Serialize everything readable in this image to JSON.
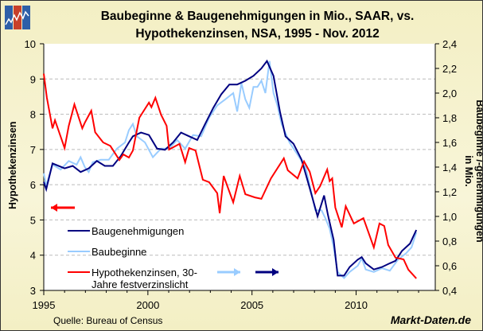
{
  "chart_data": {
    "type": "line",
    "title": "Baubeginne & Baugenehmigungen in Mio., SAAR, vs. Hypothekenzinsen, NSA, 1995 - Nov. 2012",
    "title_lines": [
      "Baubeginne & Baugenehmigungen in Mio., SAAR, vs.",
      "Hypothekenzinsen, NSA, 1995 - Nov. 2012"
    ],
    "ylabel_left": "Hypothekenzinsen",
    "ylabel_right": "Baubeginne /-genehmigungen in Mio.",
    "xlim": [
      1995,
      2013.8
    ],
    "ylim_left": [
      3,
      10
    ],
    "ylim_right": [
      0.4,
      2.4
    ],
    "x_ticks": [
      "1995",
      "2000",
      "2005",
      "2010"
    ],
    "y_ticks_left": [
      "3",
      "4",
      "5",
      "6",
      "7",
      "8",
      "9",
      "10"
    ],
    "y_ticks_right": [
      "0,4",
      "0,6",
      "0,8",
      "1,0",
      "1,2",
      "1,4",
      "1,6",
      "1,8",
      "2,0",
      "2,2",
      "2,4"
    ],
    "grid": "horizontal dashed",
    "legend_placement": "bottom-left",
    "series": [
      {
        "name": "Baugenehmigungen",
        "axis": "right",
        "color": "#000080",
        "points": [
          [
            1995.0,
            1.28
          ],
          [
            1995.12,
            1.22
          ],
          [
            1995.42,
            1.43
          ],
          [
            1996.0,
            1.39
          ],
          [
            1996.39,
            1.41
          ],
          [
            1996.77,
            1.36
          ],
          [
            1997.16,
            1.39
          ],
          [
            1997.55,
            1.45
          ],
          [
            1997.93,
            1.41
          ],
          [
            1998.32,
            1.41
          ],
          [
            1998.7,
            1.49
          ],
          [
            1999.09,
            1.6
          ],
          [
            1999.28,
            1.65
          ],
          [
            1999.67,
            1.68
          ],
          [
            2000.05,
            1.66
          ],
          [
            2000.44,
            1.55
          ],
          [
            2000.82,
            1.54
          ],
          [
            2001.21,
            1.6
          ],
          [
            2001.59,
            1.68
          ],
          [
            2001.98,
            1.65
          ],
          [
            2002.37,
            1.62
          ],
          [
            2002.75,
            1.75
          ],
          [
            2003.14,
            1.88
          ],
          [
            2003.52,
            1.99
          ],
          [
            2003.91,
            2.07
          ],
          [
            2004.29,
            2.07
          ],
          [
            2004.68,
            2.1
          ],
          [
            2005.07,
            2.14
          ],
          [
            2005.45,
            2.2
          ],
          [
            2005.72,
            2.26
          ],
          [
            2006.03,
            2.14
          ],
          [
            2006.34,
            1.85
          ],
          [
            2006.61,
            1.65
          ],
          [
            2006.99,
            1.59
          ],
          [
            2007.38,
            1.46
          ],
          [
            2007.77,
            1.23
          ],
          [
            2008.15,
            1.0
          ],
          [
            2008.46,
            1.17
          ],
          [
            2008.65,
            1.01
          ],
          [
            2008.92,
            0.81
          ],
          [
            2009.11,
            0.52
          ],
          [
            2009.42,
            0.52
          ],
          [
            2009.69,
            0.59
          ],
          [
            2010.08,
            0.65
          ],
          [
            2010.27,
            0.67
          ],
          [
            2010.46,
            0.62
          ],
          [
            2010.85,
            0.57
          ],
          [
            2011.24,
            0.59
          ],
          [
            2011.62,
            0.62
          ],
          [
            2011.89,
            0.64
          ],
          [
            2012.2,
            0.72
          ],
          [
            2012.59,
            0.78
          ],
          [
            2012.89,
            0.89
          ]
        ]
      },
      {
        "name": "Baubeginne",
        "axis": "right",
        "color": "#99ccff",
        "points": [
          [
            1995.0,
            1.35
          ],
          [
            1995.12,
            1.25
          ],
          [
            1995.42,
            1.42
          ],
          [
            1995.81,
            1.38
          ],
          [
            1996.2,
            1.45
          ],
          [
            1996.58,
            1.42
          ],
          [
            1996.77,
            1.48
          ],
          [
            1996.97,
            1.4
          ],
          [
            1997.16,
            1.36
          ],
          [
            1997.35,
            1.44
          ],
          [
            1997.74,
            1.46
          ],
          [
            1998.12,
            1.46
          ],
          [
            1998.51,
            1.55
          ],
          [
            1998.9,
            1.6
          ],
          [
            1999.09,
            1.7
          ],
          [
            1999.28,
            1.75
          ],
          [
            1999.47,
            1.65
          ],
          [
            1999.86,
            1.6
          ],
          [
            2000.24,
            1.48
          ],
          [
            2000.63,
            1.55
          ],
          [
            2001.02,
            1.55
          ],
          [
            2001.4,
            1.62
          ],
          [
            2001.79,
            1.55
          ],
          [
            2002.17,
            1.66
          ],
          [
            2002.56,
            1.65
          ],
          [
            2002.94,
            1.8
          ],
          [
            2003.33,
            1.9
          ],
          [
            2003.72,
            1.95
          ],
          [
            2004.1,
            2.0
          ],
          [
            2004.29,
            1.85
          ],
          [
            2004.49,
            2.08
          ],
          [
            2004.68,
            1.95
          ],
          [
            2004.87,
            1.88
          ],
          [
            2005.07,
            2.05
          ],
          [
            2005.26,
            2.05
          ],
          [
            2005.45,
            2.1
          ],
          [
            2005.64,
            2.0
          ],
          [
            2005.84,
            2.26
          ],
          [
            2006.03,
            2.0
          ],
          [
            2006.22,
            1.9
          ],
          [
            2006.42,
            1.75
          ],
          [
            2006.8,
            1.6
          ],
          [
            2007.19,
            1.5
          ],
          [
            2007.57,
            1.4
          ],
          [
            2007.84,
            1.2
          ],
          [
            2008.04,
            1.05
          ],
          [
            2008.34,
            1.05
          ],
          [
            2008.54,
            0.98
          ],
          [
            2008.73,
            0.9
          ],
          [
            2008.92,
            0.75
          ],
          [
            2009.11,
            0.55
          ],
          [
            2009.42,
            0.5
          ],
          [
            2009.69,
            0.55
          ],
          [
            2010.08,
            0.6
          ],
          [
            2010.27,
            0.66
          ],
          [
            2010.46,
            0.57
          ],
          [
            2010.85,
            0.55
          ],
          [
            2011.24,
            0.58
          ],
          [
            2011.62,
            0.56
          ],
          [
            2012.01,
            0.65
          ],
          [
            2012.39,
            0.7
          ],
          [
            2012.66,
            0.75
          ],
          [
            2012.89,
            0.87
          ]
        ]
      },
      {
        "name": "Hypothekenzinsen, 30-Jahre festverzinslicht",
        "axis": "left",
        "color": "#ff0000",
        "points": [
          [
            1995.0,
            9.15
          ],
          [
            1995.15,
            8.47
          ],
          [
            1995.42,
            7.6
          ],
          [
            1995.54,
            7.83
          ],
          [
            1996.0,
            7.04
          ],
          [
            1996.2,
            7.67
          ],
          [
            1996.47,
            8.28
          ],
          [
            1996.85,
            7.6
          ],
          [
            1996.97,
            7.76
          ],
          [
            1997.28,
            8.1
          ],
          [
            1997.47,
            7.49
          ],
          [
            1997.85,
            7.2
          ],
          [
            1998.2,
            7.1
          ],
          [
            1998.63,
            6.7
          ],
          [
            1998.82,
            6.86
          ],
          [
            1999.09,
            6.77
          ],
          [
            1999.28,
            6.97
          ],
          [
            1999.59,
            7.9
          ],
          [
            2000.05,
            8.33
          ],
          [
            2000.17,
            8.2
          ],
          [
            2000.36,
            8.47
          ],
          [
            2000.63,
            7.99
          ],
          [
            2000.9,
            7.67
          ],
          [
            2001.02,
            7.0
          ],
          [
            2001.52,
            7.16
          ],
          [
            2001.79,
            6.64
          ],
          [
            2001.98,
            7.04
          ],
          [
            2002.29,
            6.97
          ],
          [
            2002.64,
            6.14
          ],
          [
            2002.94,
            6.07
          ],
          [
            2003.33,
            5.76
          ],
          [
            2003.45,
            5.19
          ],
          [
            2003.64,
            6.25
          ],
          [
            2004.1,
            5.5
          ],
          [
            2004.41,
            6.25
          ],
          [
            2004.68,
            5.73
          ],
          [
            2005.14,
            5.64
          ],
          [
            2005.45,
            5.6
          ],
          [
            2005.91,
            6.18
          ],
          [
            2006.53,
            6.75
          ],
          [
            2006.72,
            6.41
          ],
          [
            2007.19,
            6.18
          ],
          [
            2007.5,
            6.66
          ],
          [
            2007.77,
            6.37
          ],
          [
            2008.04,
            5.76
          ],
          [
            2008.27,
            5.96
          ],
          [
            2008.61,
            6.43
          ],
          [
            2008.73,
            6.1
          ],
          [
            2008.85,
            6.18
          ],
          [
            2009.0,
            5.35
          ],
          [
            2009.31,
            4.79
          ],
          [
            2009.5,
            5.39
          ],
          [
            2009.89,
            4.9
          ],
          [
            2010.35,
            5.05
          ],
          [
            2010.85,
            4.22
          ],
          [
            2011.12,
            4.9
          ],
          [
            2011.35,
            4.83
          ],
          [
            2011.54,
            4.29
          ],
          [
            2011.89,
            3.93
          ],
          [
            2012.28,
            3.88
          ],
          [
            2012.51,
            3.59
          ],
          [
            2012.89,
            3.34
          ]
        ]
      }
    ],
    "legend": [
      "Baugenehmigungen",
      "Baubeginne",
      "Hypothekenzinsen, 30-",
      "Jahre festverzinslicht"
    ]
  },
  "footer": {
    "source": "Quelle: Bureau of Census",
    "brand": "Markt-Daten.de"
  },
  "colors": {
    "background": "#f5f1cc",
    "grid": "#bbbbbb"
  }
}
